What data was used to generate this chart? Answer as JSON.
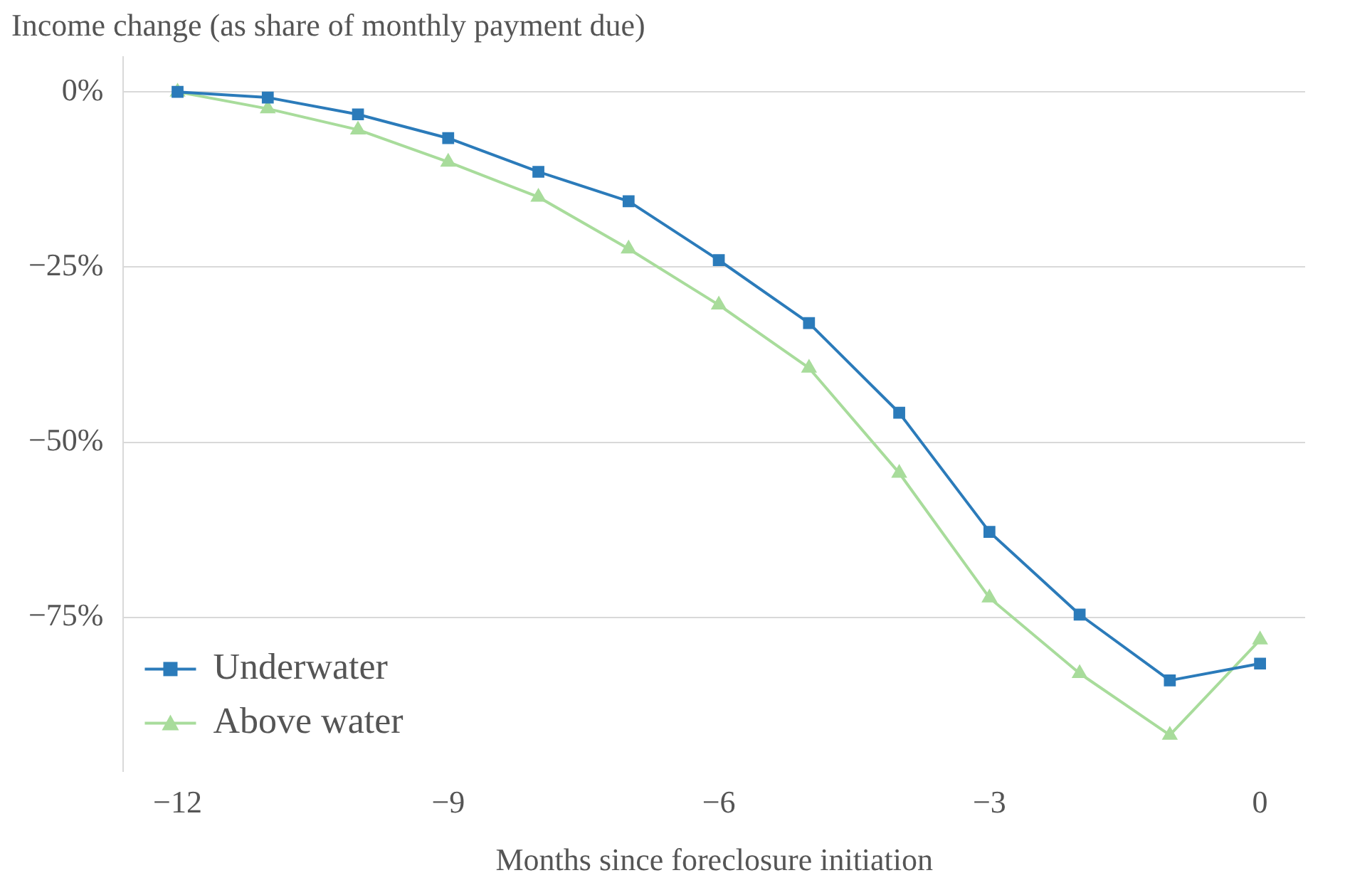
{
  "chart_data": {
    "type": "line",
    "ylabel": "Income change (as share of monthly payment due)",
    "xlabel": "Months since foreclosure initiation",
    "x": [
      -12,
      -11,
      -10,
      -9,
      -8,
      -7,
      -6,
      -5,
      -4,
      -3,
      -2,
      -1,
      0
    ],
    "series": [
      {
        "name": "Underwater",
        "color": "#2b7bba",
        "marker": "square",
        "values": [
          0,
          -0.8,
          -3.2,
          -6.6,
          -11.4,
          -15.6,
          -24,
          -33,
          -45.8,
          -62.8,
          -74.6,
          -84,
          -81.6
        ]
      },
      {
        "name": "Above water",
        "color": "#a8dc9b",
        "marker": "triangle",
        "values": [
          0,
          -2.4,
          -5.4,
          -10,
          -15,
          -22.4,
          -30.4,
          -39.4,
          -54.4,
          -72.2,
          -83,
          -91.8,
          -78.2
        ]
      }
    ],
    "xlim": [
      -12.6,
      0.5
    ],
    "xticks": [
      {
        "value": -12,
        "label": "−12"
      },
      {
        "value": -9,
        "label": "−9"
      },
      {
        "value": -6,
        "label": "−6"
      },
      {
        "value": -3,
        "label": "−3"
      },
      0
    ],
    "ylim": [
      -97,
      5
    ],
    "yticks": [
      {
        "value": 0,
        "label": "0%"
      },
      {
        "value": -25,
        "label": "−25%"
      },
      {
        "value": -50,
        "label": "−50%"
      },
      {
        "value": -75,
        "label": "−75%"
      }
    ],
    "grid": "y",
    "legend": "bottom left",
    "line_style": "solid"
  }
}
